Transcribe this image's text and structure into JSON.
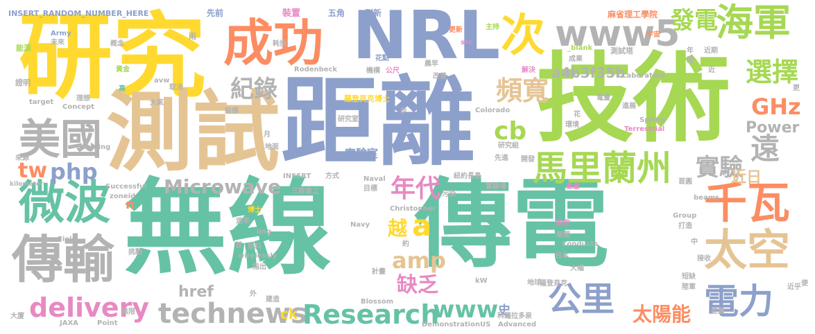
{
  "palette": {
    "green": "#66c2a5",
    "orange": "#fc8d62",
    "blue": "#8da0cb",
    "pink": "#e78ac3",
    "lime": "#a6d854",
    "yellow": "#ffd92f",
    "tan": "#e5c494",
    "gray": "#b3b3b3"
  },
  "words": [
    {
      "text": "無線",
      "color": "green"
    },
    {
      "text": "傳電",
      "color": "green"
    },
    {
      "text": "距離",
      "color": "blue"
    },
    {
      "text": "技術",
      "color": "lime"
    },
    {
      "text": "研究",
      "color": "yellow"
    },
    {
      "text": "測試",
      "color": "tan"
    },
    {
      "text": "NRL",
      "color": "blue"
    },
    {
      "text": "成功",
      "color": "orange"
    },
    {
      "text": "微波",
      "color": "green"
    },
    {
      "text": "傳輸",
      "color": "gray"
    },
    {
      "text": "美國",
      "color": "gray"
    },
    {
      "text": "千瓦",
      "color": "orange"
    },
    {
      "text": "太空",
      "color": "tan"
    },
    {
      "text": "海軍",
      "color": "lime"
    },
    {
      "text": "馬里蘭州",
      "color": "lime"
    },
    {
      "text": "www5",
      "color": "gray"
    },
    {
      "text": "次",
      "color": "yellow"
    },
    {
      "text": "電力",
      "color": "blue"
    },
    {
      "text": "公里",
      "color": "blue"
    },
    {
      "text": "technews",
      "color": "gray"
    },
    {
      "text": "Research",
      "color": "green"
    },
    {
      "text": "delivery",
      "color": "pink"
    },
    {
      "text": "Microwave",
      "color": "gray"
    },
    {
      "text": "www",
      "color": "green"
    },
    {
      "text": "amp",
      "color": "tan"
    },
    {
      "text": "a",
      "color": "yellow"
    },
    {
      "text": "年代",
      "color": "pink"
    },
    {
      "text": "遠",
      "color": "gray"
    },
    {
      "text": "實驗",
      "color": "gray"
    },
    {
      "text": "選擇",
      "color": "lime"
    },
    {
      "text": "紀錄",
      "color": "gray"
    },
    {
      "text": "頻寬",
      "color": "tan"
    },
    {
      "text": "cb",
      "color": "lime"
    },
    {
      "text": "發電",
      "color": "lime"
    },
    {
      "text": "a4b3f35b",
      "color": "gray"
    },
    {
      "text": "GHz",
      "color": "orange"
    },
    {
      "text": "Power",
      "color": "gray"
    },
    {
      "text": "php",
      "color": "blue"
    },
    {
      "text": "tw",
      "color": "orange"
    },
    {
      "text": "缺乏",
      "color": "pink"
    },
    {
      "text": "太陽能",
      "color": "orange"
    },
    {
      "text": "href",
      "color": "gray"
    },
    {
      "text": "近日",
      "color": "tan"
    },
    {
      "text": "實驗室",
      "color": "blue"
    },
    {
      "text": "越",
      "color": "yellow"
    },
    {
      "text": "史",
      "color": "blue"
    },
    {
      "text": "ck",
      "color": "yellow"
    },
    {
      "text": "n",
      "color": "orange"
    },
    {
      "text": "INSERT_RANDOM_NUMBER_HERE",
      "color": "blue"
    },
    {
      "text": "裝置",
      "color": "pink"
    },
    {
      "text": "五角",
      "color": "blue"
    },
    {
      "text": "刷新",
      "color": "blue"
    },
    {
      "text": "先前",
      "color": "blue"
    },
    {
      "text": "麻省理工學院",
      "color": "orange"
    },
    {
      "text": "Army",
      "color": "blue"
    },
    {
      "text": "能源",
      "color": "lime"
    },
    {
      "text": "未來",
      "color": "gray"
    },
    {
      "text": "雨",
      "color": "gray"
    },
    {
      "text": "概念",
      "color": "gray"
    },
    {
      "text": "耗損",
      "color": "gray"
    },
    {
      "text": "更新",
      "color": "orange"
    },
    {
      "text": "主持",
      "color": "lime"
    },
    {
      "text": "宇宙",
      "color": "orange"
    },
    {
      "text": "_blank",
      "color": "lime"
    },
    {
      "text": "Rodenbeck",
      "color": "gray"
    },
    {
      "text": "測試塔",
      "color": "gray"
    },
    {
      "text": "近期",
      "color": "gray"
    },
    {
      "text": "Conducts",
      "color": "gray"
    },
    {
      "text": "src",
      "color": "pink"
    },
    {
      "text": "花點",
      "color": "blue"
    },
    {
      "text": "晨早",
      "color": "gray"
    },
    {
      "text": "成果",
      "color": "gray"
    },
    {
      "text": "機構",
      "color": "gray"
    },
    {
      "text": "公尺",
      "color": "pink"
    },
    {
      "text": "改善",
      "color": "gray"
    },
    {
      "text": "解決",
      "color": "pink"
    },
    {
      "text": "現有",
      "color": "gray"
    },
    {
      "text": "Laboratory",
      "color": "gray"
    },
    {
      "text": "資金",
      "color": "lime"
    },
    {
      "text": "avw",
      "color": "gray"
    },
    {
      "text": "證明",
      "color": "gray"
    },
    {
      "text": "高",
      "color": "green"
    },
    {
      "text": "取消",
      "color": "gray"
    },
    {
      "text": "羅登貝克博士",
      "color": "yellow"
    },
    {
      "text": "target",
      "color": "gray"
    },
    {
      "text": "理想",
      "color": "gray"
    },
    {
      "text": "Concept",
      "color": "gray"
    },
    {
      "text": "大氣",
      "color": "gray"
    },
    {
      "text": "步",
      "color": "gray"
    },
    {
      "text": "研究室",
      "color": "gray"
    },
    {
      "text": "Colorado",
      "color": "gray"
    },
    {
      "text": "電量",
      "color": "gray"
    },
    {
      "text": "進展",
      "color": "gray"
    },
    {
      "text": "設備",
      "color": "gray"
    },
    {
      "text": "花",
      "color": "gray"
    },
    {
      "text": "月",
      "color": "gray"
    },
    {
      "text": "環境",
      "color": "gray"
    },
    {
      "text": "Spring",
      "color": "gray"
    },
    {
      "text": "Terrestrial",
      "color": "pink"
    },
    {
      "text": "地面",
      "color": "gray"
    },
    {
      "text": "研究組",
      "color": "gray"
    },
    {
      "text": "Beaming",
      "color": "gray"
    },
    {
      "text": "來源",
      "color": "gray"
    },
    {
      "text": "先進",
      "color": "gray"
    },
    {
      "text": "開發",
      "color": "gray"
    },
    {
      "text": "紐約長島",
      "color": "gray"
    },
    {
      "text": "方式",
      "color": "gray"
    },
    {
      "text": "INSERT",
      "color": "gray"
    },
    {
      "text": "kilometer",
      "color": "gray"
    },
    {
      "text": "Naval",
      "color": "gray"
    },
    {
      "text": "目標",
      "color": "gray"
    },
    {
      "text": "實驗場",
      "color": "gray"
    },
    {
      "text": "基金",
      "color": "pink"
    },
    {
      "text": "首圓",
      "color": "gray"
    },
    {
      "text": "Successful",
      "color": "gray"
    },
    {
      "text": "zoneid",
      "color": "gray"
    },
    {
      "text": "三菱重工",
      "color": "gray"
    },
    {
      "text": "污染",
      "color": "gray"
    },
    {
      "text": "beams",
      "color": "gray"
    },
    {
      "text": "Christopher",
      "color": "gray"
    },
    {
      "text": "博士",
      "color": "yellow"
    },
    {
      "text": "速率",
      "color": "gray"
    },
    {
      "text": "Navy",
      "color": "gray"
    },
    {
      "text": "Group",
      "color": "gray"
    },
    {
      "text": "打造",
      "color": "gray"
    },
    {
      "text": "Field",
      "color": "gray"
    },
    {
      "text": "img",
      "color": "gray"
    },
    {
      "text": "航空",
      "color": "pink"
    },
    {
      "text": "期間",
      "color": "gray"
    },
    {
      "text": "首",
      "color": "gray"
    },
    {
      "text": "原料",
      "color": "gray"
    },
    {
      "text": "約",
      "color": "gray"
    },
    {
      "text": "日本",
      "color": "gray"
    },
    {
      "text": "中",
      "color": "gray"
    },
    {
      "text": "wirelessly",
      "color": "gray"
    },
    {
      "text": "挑戰",
      "color": "gray"
    },
    {
      "text": "指出",
      "color": "gray"
    },
    {
      "text": "接收",
      "color": "gray"
    },
    {
      "text": "大幅",
      "color": "gray"
    },
    {
      "text": "計畫",
      "color": "gray"
    },
    {
      "text": "kW",
      "color": "gray"
    },
    {
      "text": "地球",
      "color": "gray"
    },
    {
      "text": "羅登貝克",
      "color": "gray"
    },
    {
      "text": "短缺",
      "color": "gray"
    },
    {
      "text": "陸軍",
      "color": "gray"
    },
    {
      "text": "近乎",
      "color": "gray"
    },
    {
      "text": "便",
      "color": "gray"
    },
    {
      "text": "建造",
      "color": "gray"
    },
    {
      "text": "外",
      "color": "gray"
    },
    {
      "text": "Blossom",
      "color": "gray"
    },
    {
      "text": "科羅拉多泉",
      "color": "gray"
    },
    {
      "text": "Advanced",
      "color": "gray"
    },
    {
      "text": "能量",
      "color": "gray"
    },
    {
      "text": "無限",
      "color": "gray"
    },
    {
      "text": "大廈",
      "color": "gray"
    },
    {
      "text": "JAXA",
      "color": "gray"
    },
    {
      "text": "Point",
      "color": "gray"
    },
    {
      "text": "DemonstrationUS",
      "color": "gray"
    },
    {
      "text": "更",
      "color": "gray"
    },
    {
      "text": "年",
      "color": "gray"
    },
    {
      "text": "回",
      "color": "gray"
    },
    {
      "text": "近",
      "color": "gray"
    }
  ]
}
